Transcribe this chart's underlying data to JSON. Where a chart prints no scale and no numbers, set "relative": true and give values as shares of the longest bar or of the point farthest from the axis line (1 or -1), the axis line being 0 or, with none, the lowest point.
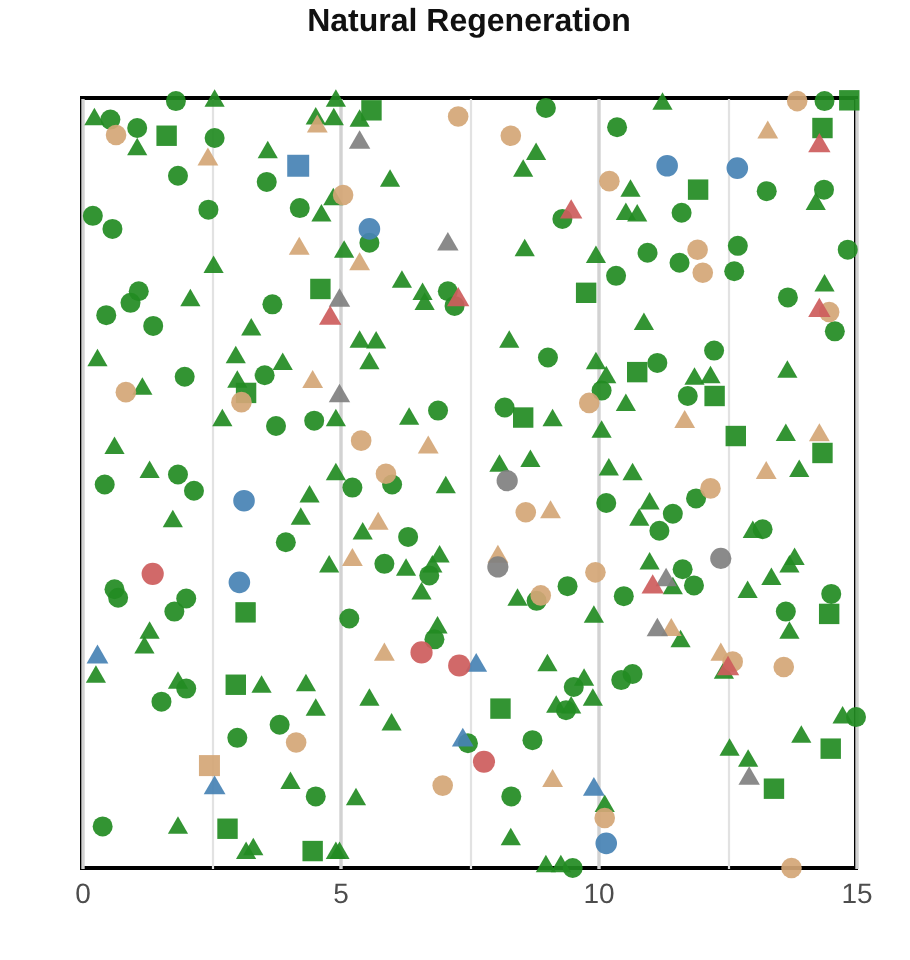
{
  "chart_data": {
    "type": "scatter",
    "title": "Natural Regeneration",
    "relative": true,
    "grid": "x",
    "tick_labels": "x",
    "xlim": [
      0,
      15
    ],
    "xticks": [
      0,
      {
        "value": 2.5,
        "label": null
      },
      5,
      {
        "value": 7.5,
        "label": null
      },
      10,
      {
        "value": 12.5,
        "label": null
      },
      15
    ],
    "series": [
      {
        "color": "#228b22",
        "marker": "circle",
        "x": [
          0.55,
          1.07,
          1.82,
          2.57,
          3.58,
          1.86,
          0.21,
          0.59,
          2.45,
          4.22,
          1.1,
          0.94,
          0.47,
          1.38,
          3.69,
          1.99,
          3.54,
          3.76,
          4.5,
          1.86,
          2.17,
          0.44,
          8.99,
          10.37,
          9.31,
          5.57,
          10.35,
          7.09,
          7.22,
          9.03,
          10.07,
          6.9,
          8.19,
          5.24,
          6.01,
          14.39,
          13.27,
          14.38,
          11.62,
          10.96,
          11.58,
          12.71,
          12.64,
          14.84,
          13.68,
          14.59,
          11.15,
          12.25,
          11.74,
          3.95,
          0.63,
          0.7,
          2.02,
          1.79,
          5.18,
          2.02,
          1.54,
          3.83,
          3.01,
          4.53,
          0.4,
          10.16,
          6.32,
          5.86,
          6.73,
          8.81,
          9.41,
          6.83,
          9.53,
          9.38,
          10.45,
          10.67,
          7.48,
          8.73,
          8.32,
          9.51,
          11.19,
          11.45,
          11.9,
          13.19,
          11.64,
          11.86,
          10.5,
          14.52,
          13.64,
          15.0
        ],
        "values": [
          0.972,
          0.961,
          0.996,
          0.948,
          0.891,
          0.899,
          0.847,
          0.83,
          0.855,
          0.857,
          0.749,
          0.734,
          0.718,
          0.704,
          0.732,
          0.638,
          0.64,
          0.574,
          0.581,
          0.511,
          0.49,
          0.498,
          0.987,
          0.962,
          0.843,
          0.812,
          0.769,
          0.749,
          0.73,
          0.663,
          0.62,
          0.594,
          0.598,
          0.494,
          0.498,
          0.996,
          0.879,
          0.881,
          0.851,
          0.799,
          0.786,
          0.808,
          0.775,
          0.803,
          0.741,
          0.697,
          0.656,
          0.672,
          0.613,
          0.423,
          0.362,
          0.351,
          0.35,
          0.333,
          0.324,
          0.233,
          0.216,
          0.186,
          0.169,
          0.093,
          0.054,
          0.474,
          0.43,
          0.395,
          0.38,
          0.347,
          0.366,
          0.297,
          0.235,
          0.205,
          0.244,
          0.252,
          0.162,
          0.166,
          0.093,
          0.0,
          0.438,
          0.46,
          0.48,
          0.44,
          0.388,
          0.367,
          0.353,
          0.356,
          0.333,
          0.196
        ]
      },
      {
        "color": "#228b22",
        "marker": "triangle",
        "x": [
          0.24,
          1.07,
          2.57,
          3.6,
          4.53,
          4.87,
          4.64,
          5.08,
          2.55,
          2.1,
          3.28,
          0.3,
          2.98,
          3.89,
          1.17,
          3.01,
          2.72,
          4.92,
          0.63,
          1.31,
          4.92,
          4.41,
          4.92,
          4.88,
          5.38,
          8.8,
          8.55,
          5.97,
          8.58,
          9.96,
          6.2,
          6.6,
          6.64,
          5.38,
          5.7,
          5.57,
          8.28,
          9.96,
          10.16,
          6.34,
          9.12,
          10.07,
          8.09,
          8.69,
          10.21,
          7.05,
          11.25,
          10.63,
          10.54,
          10.76,
          14.22,
          14.39,
          10.89,
          11.87,
          12.18,
          13.67,
          10.54,
          13.64,
          13.9,
          10.67,
          1.76,
          4.24,
          4.79,
          1.31,
          1.21,
          0.27,
          1.86,
          3.48,
          4.34,
          4.53,
          4.04,
          1.86,
          3.18,
          3.32,
          4.92,
          5.44,
          6.93,
          6.79,
          6.28,
          6.58,
          8.44,
          9.92,
          6.89,
          9.02,
          9.73,
          9.19,
          9.48,
          9.9,
          5.57,
          6.0,
          10.13,
          5.31,
          4.99,
          8.31,
          8.99,
          9.28,
          11.0,
          10.8,
          13.0,
          11.0,
          11.45,
          12.9,
          13.36,
          13.71,
          13.81,
          13.71,
          11.6,
          12.44,
          14.74,
          13.94,
          12.55,
          12.91
        ],
        "values": [
          0.976,
          0.937,
          1.0,
          0.933,
          0.977,
          0.872,
          0.851,
          0.804,
          0.784,
          0.741,
          0.703,
          0.663,
          0.667,
          0.658,
          0.626,
          0.635,
          0.585,
          0.585,
          0.549,
          0.518,
          0.515,
          0.486,
          1.0,
          0.976,
          0.974,
          0.931,
          0.909,
          0.896,
          0.806,
          0.797,
          0.765,
          0.749,
          0.736,
          0.687,
          0.686,
          0.659,
          0.687,
          0.659,
          0.641,
          0.587,
          0.585,
          0.57,
          0.526,
          0.532,
          0.521,
          0.498,
          0.996,
          0.883,
          0.853,
          0.851,
          0.866,
          0.76,
          0.71,
          0.639,
          0.641,
          0.648,
          0.605,
          0.566,
          0.519,
          0.515,
          0.454,
          0.457,
          0.395,
          0.309,
          0.29,
          0.252,
          0.244,
          0.239,
          0.241,
          0.209,
          0.114,
          0.056,
          0.023,
          0.028,
          0.023,
          0.438,
          0.408,
          0.395,
          0.391,
          0.36,
          0.352,
          0.33,
          0.316,
          0.267,
          0.248,
          0.213,
          0.212,
          0.222,
          0.222,
          0.19,
          0.084,
          0.093,
          0.023,
          0.041,
          0.006,
          0.006,
          0.477,
          0.456,
          0.44,
          0.399,
          0.367,
          0.362,
          0.379,
          0.395,
          0.405,
          0.309,
          0.298,
          0.257,
          0.199,
          0.174,
          0.157,
          0.143
        ]
      },
      {
        "color": "#228b22",
        "marker": "square",
        "x": [
          1.64,
          4.62,
          3.18,
          5.61,
          9.77,
          8.55,
          14.87,
          14.35,
          11.94,
          10.76,
          12.26,
          12.67,
          14.35,
          3.17,
          2.98,
          2.82,
          4.47,
          8.11,
          14.48,
          14.51,
          13.41
        ],
        "values": [
          0.951,
          0.752,
          0.617,
          0.984,
          0.747,
          0.585,
          0.997,
          0.961,
          0.881,
          0.644,
          0.613,
          0.561,
          0.539,
          0.332,
          0.238,
          0.051,
          0.022,
          0.207,
          0.33,
          0.155,
          0.103
        ]
      },
      {
        "color": "#d4a676",
        "marker": "circle",
        "x": [
          0.66,
          5.06,
          0.85,
          3.09,
          7.29,
          8.31,
          10.22,
          9.83,
          5.41,
          5.89,
          13.86,
          11.93,
          12.03,
          14.48,
          12.18,
          4.15,
          8.6,
          8.89,
          9.95,
          6.99,
          10.13,
          12.61,
          13.6,
          13.75
        ],
        "values": [
          0.952,
          0.874,
          0.618,
          0.605,
          0.976,
          0.951,
          0.892,
          0.604,
          0.555,
          0.512,
          0.996,
          0.803,
          0.773,
          0.722,
          0.493,
          0.163,
          0.462,
          0.354,
          0.384,
          0.107,
          0.065,
          0.268,
          0.261,
          0.0
        ]
      },
      {
        "color": "#d4a676",
        "marker": "triangle",
        "x": [
          2.44,
          4.56,
          4.21,
          4.47,
          5.38,
          6.71,
          13.29,
          11.68,
          14.29,
          13.26,
          9.08,
          5.74,
          5.24,
          8.06,
          5.86,
          9.12,
          11.42,
          12.38
        ],
        "values": [
          0.924,
          0.967,
          0.808,
          0.635,
          0.788,
          0.55,
          0.959,
          0.583,
          0.566,
          0.517,
          0.466,
          0.451,
          0.404,
          0.408,
          0.281,
          0.117,
          0.313,
          0.281
        ]
      },
      {
        "color": "#d4a676",
        "marker": "square",
        "x": [
          2.47
        ],
        "values": [
          0.133
        ]
      },
      {
        "color": "#808080",
        "marker": "circle",
        "x": [
          8.24,
          8.06,
          12.38
        ],
        "values": [
          0.503,
          0.391,
          0.402
        ]
      },
      {
        "color": "#808080",
        "marker": "triangle",
        "x": [
          5.38,
          7.09,
          4.99,
          4.99,
          11.32,
          11.15,
          12.93
        ],
        "values": [
          0.946,
          0.814,
          0.741,
          0.617,
          0.378,
          0.313,
          0.12
        ]
      },
      {
        "color": "#4682b4",
        "marker": "circle",
        "x": [
          5.57,
          11.34,
          12.7,
          3.14,
          3.05,
          10.16
        ],
        "values": [
          0.83,
          0.912,
          0.909,
          0.477,
          0.371,
          0.032
        ]
      },
      {
        "color": "#4682b4",
        "marker": "triangle",
        "x": [
          0.3,
          2.57,
          7.64,
          7.38,
          9.92
        ],
        "values": [
          0.278,
          0.108,
          0.267,
          0.17,
          0.106
        ]
      },
      {
        "color": "#4682b4",
        "marker": "square",
        "x": [
          4.19
        ],
        "values": [
          0.912
        ]
      },
      {
        "color": "#cd5c5c",
        "marker": "circle",
        "x": [
          1.37,
          6.58,
          7.31,
          7.79
        ],
        "values": [
          0.382,
          0.28,
          0.263,
          0.138
        ]
      },
      {
        "color": "#cd5c5c",
        "marker": "triangle",
        "x": [
          4.81,
          7.29,
          9.48,
          14.29,
          14.29,
          11.06,
          12.52
        ],
        "values": [
          0.718,
          0.742,
          0.856,
          0.942,
          0.728,
          0.369,
          0.263
        ]
      }
    ]
  }
}
